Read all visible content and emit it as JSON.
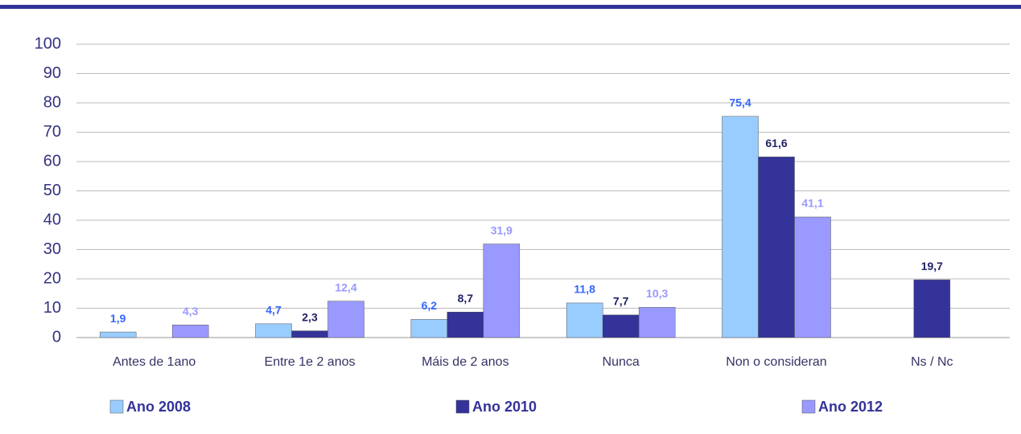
{
  "chart_data": {
    "type": "bar",
    "categories": [
      "Antes de 1ano",
      "Entre 1e 2 anos",
      "Máis de 2 anos",
      "Nunca",
      "Non o consideran",
      "Ns / Nc"
    ],
    "series": [
      {
        "name": "Ano 2008",
        "color": "#99ccff",
        "label_color": "#3366ff",
        "values": [
          1.9,
          4.7,
          6.2,
          11.8,
          75.4,
          null
        ],
        "value_labels": [
          "1,9",
          "4,7",
          "6,2",
          "11,8",
          "75,4",
          null
        ]
      },
      {
        "name": "Ano 2010",
        "color": "#333399",
        "label_color": "#222266",
        "values": [
          null,
          2.3,
          8.7,
          7.7,
          61.6,
          19.7
        ],
        "value_labels": [
          null,
          "2,3",
          "8,7",
          "7,7",
          "61,6",
          "19,7"
        ]
      },
      {
        "name": "Ano 2012",
        "color": "#9999ff",
        "label_color": "#9999ff",
        "values": [
          4.3,
          12.4,
          31.9,
          10.3,
          41.1,
          null
        ],
        "value_labels": [
          "4,3",
          "12,4",
          "31,9",
          "10,3",
          "41,1",
          null
        ]
      }
    ],
    "ylim": [
      0,
      100
    ],
    "yticks": [
      0,
      10,
      20,
      30,
      40,
      50,
      60,
      70,
      80,
      90,
      100
    ],
    "grid": true,
    "legend": "bottom"
  }
}
